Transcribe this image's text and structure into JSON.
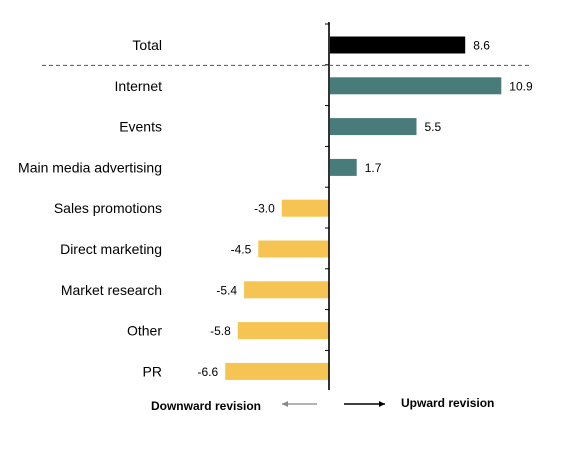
{
  "chart_data": {
    "type": "bar",
    "orientation": "horizontal",
    "categories": [
      "Total",
      "Internet",
      "Events",
      "Main media advertising",
      "Sales promotions",
      "Direct marketing",
      "Market research",
      "Other",
      "PR"
    ],
    "values": [
      8.6,
      10.9,
      5.5,
      1.7,
      -3.0,
      -4.5,
      -5.4,
      -5.8,
      -6.6
    ],
    "value_labels": [
      "8.6",
      "10.9",
      "5.5",
      "1.7",
      "-3.0",
      "-4.5",
      "-5.4",
      "-5.8",
      "-6.6"
    ],
    "title": "",
    "xlabel": "",
    "ylabel": "",
    "xlim": [
      -10,
      12
    ],
    "grid": false,
    "separator_after_first": true,
    "colors": {
      "total": "#000000",
      "positive": "#4a7b7b",
      "negative": "#f5c452",
      "axis": "#000000",
      "separator": "#555555",
      "arrow_left": "#888888",
      "arrow_right": "#000000"
    },
    "legend": {
      "downward": "Downward revision",
      "upward": "Upward revision"
    }
  }
}
